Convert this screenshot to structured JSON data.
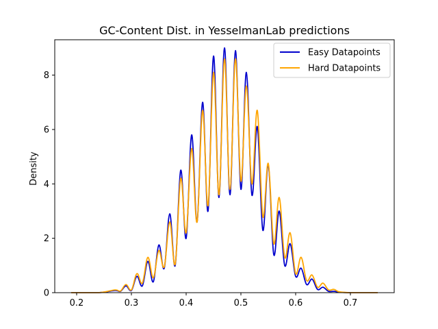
{
  "chart_data": {
    "type": "line",
    "title": "GC-Content Dist. in YesselmanLab predictions",
    "xlabel": "",
    "ylabel": "Density",
    "xlim": [
      0.16,
      0.78
    ],
    "ylim": [
      0,
      9.3
    ],
    "xticks": [
      "0.2",
      "0.3",
      "0.4",
      "0.5",
      "0.6",
      "0.7"
    ],
    "yticks": [
      "0",
      "2",
      "4",
      "6",
      "8"
    ],
    "grid": false,
    "legend_position": "top-right",
    "series": [
      {
        "name": "Easy Datapoints",
        "color": "#0000cc",
        "x": [
          0.19,
          0.24,
          0.27,
          0.28,
          0.29,
          0.3,
          0.31,
          0.32,
          0.33,
          0.34,
          0.35,
          0.36,
          0.37,
          0.38,
          0.39,
          0.4,
          0.41,
          0.42,
          0.43,
          0.44,
          0.45,
          0.46,
          0.47,
          0.48,
          0.49,
          0.5,
          0.51,
          0.52,
          0.53,
          0.54,
          0.55,
          0.56,
          0.57,
          0.58,
          0.59,
          0.6,
          0.61,
          0.62,
          0.63,
          0.64,
          0.65,
          0.66,
          0.67,
          0.68,
          0.7,
          0.75
        ],
        "y": [
          0.0,
          0.0,
          0.08,
          0.05,
          0.25,
          0.08,
          0.6,
          0.25,
          1.15,
          0.4,
          1.75,
          0.9,
          2.9,
          1.0,
          4.5,
          2.0,
          5.8,
          2.6,
          7.0,
          3.0,
          8.7,
          3.5,
          9.0,
          3.6,
          8.9,
          3.8,
          8.1,
          3.6,
          6.1,
          2.3,
          4.7,
          1.4,
          3.0,
          1.0,
          1.8,
          0.6,
          0.9,
          0.3,
          0.5,
          0.12,
          0.2,
          0.05,
          0.05,
          0.02,
          0.0,
          0.0
        ]
      },
      {
        "name": "Hard Datapoints",
        "color": "#ffa500",
        "x": [
          0.19,
          0.24,
          0.27,
          0.28,
          0.29,
          0.3,
          0.31,
          0.32,
          0.33,
          0.34,
          0.35,
          0.36,
          0.37,
          0.38,
          0.39,
          0.4,
          0.41,
          0.42,
          0.43,
          0.44,
          0.45,
          0.46,
          0.47,
          0.48,
          0.49,
          0.5,
          0.51,
          0.52,
          0.53,
          0.54,
          0.55,
          0.56,
          0.57,
          0.58,
          0.59,
          0.6,
          0.61,
          0.62,
          0.63,
          0.64,
          0.65,
          0.66,
          0.67,
          0.68,
          0.7,
          0.75
        ],
        "y": [
          0.0,
          0.0,
          0.1,
          0.06,
          0.3,
          0.1,
          0.7,
          0.35,
          1.3,
          0.55,
          1.55,
          0.95,
          2.6,
          1.05,
          4.2,
          2.2,
          5.3,
          2.6,
          6.7,
          3.2,
          8.1,
          3.6,
          8.6,
          3.8,
          8.6,
          4.1,
          7.6,
          4.0,
          6.7,
          2.8,
          4.75,
          1.8,
          3.5,
          1.3,
          2.2,
          0.7,
          1.3,
          0.45,
          0.65,
          0.2,
          0.35,
          0.1,
          0.12,
          0.03,
          0.0,
          0.0
        ]
      }
    ]
  }
}
